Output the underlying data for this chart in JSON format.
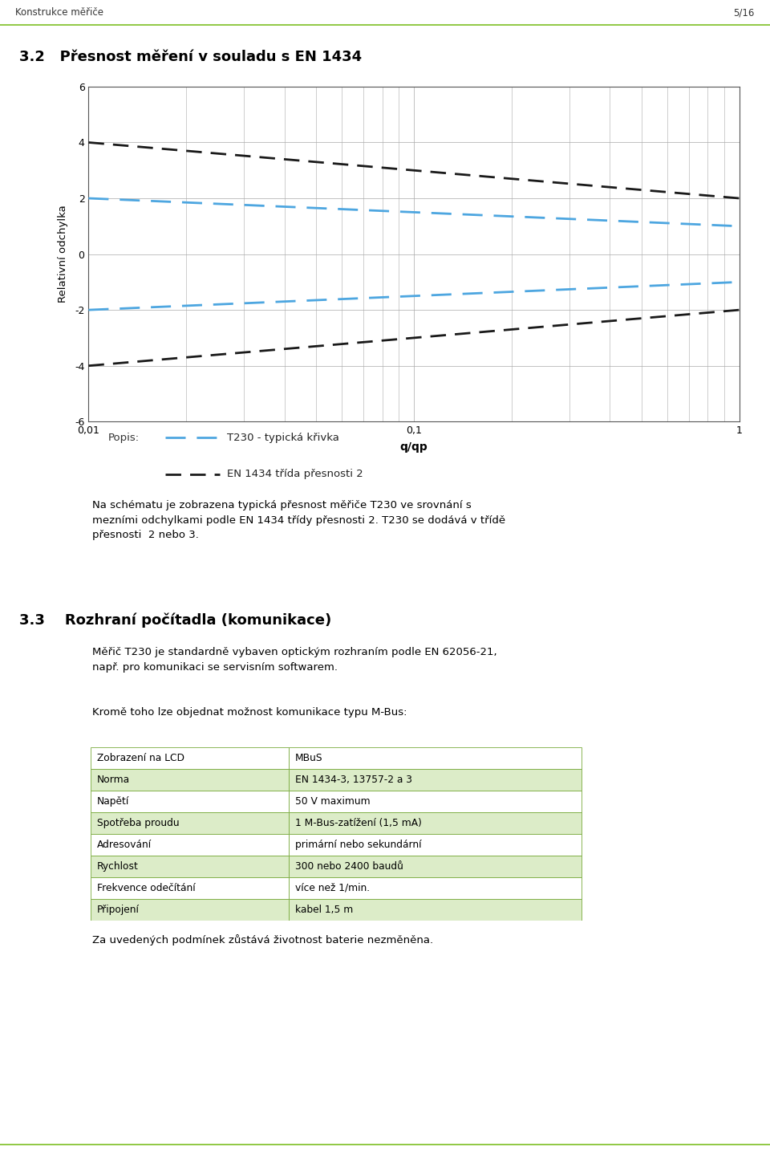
{
  "page_header_left": "Konstrukce měřiče",
  "page_header_right": "5/16",
  "header_line_color": "#8dc63f",
  "section_title": "3.2   Přesnost měření v souladu s EN 1434",
  "section_title_fontsize": 13,
  "chart": {
    "ylabel": "Relativní odchylka",
    "xlabel": "q/qp",
    "ylim": [
      -6,
      6
    ],
    "yticks": [
      -6,
      -4,
      -2,
      0,
      2,
      4,
      6
    ],
    "xtick_labels": [
      "0,01",
      "0,1",
      "1"
    ],
    "xtick_positions": [
      0.01,
      0.1,
      1.0
    ],
    "grid_color": "#aaaaaa",
    "grid_linewidth": 0.5,
    "blue_color": "#4da6e0",
    "black_color": "#1a1a1a"
  },
  "legend_label_popis": "Popis:",
  "legend_blue_label": "T230 - typická křivka",
  "legend_black_label": "EN 1434 třída přesnosti 2",
  "para1": "Na schématu je zobrazena typická přesnost měřiče T230 ve srovnání s\nmezními odchylkami podle EN 1434 třídy přesnosti 2. T230 se dodává v třídě\npřesnosti  2 nebo 3.",
  "section2_num": "3.3",
  "section2_title": "Rozhraní počítadla (komunikace)",
  "section2_title_fontsize": 13,
  "para2": "Měřič T230 je standardně vybaven optickým rozhraním podle EN 62056-21,\nnapř. pro komunikaci se servisním softwarem.",
  "para3": "Kromě toho lze objednat možnost komunikace typu M-Bus:",
  "table_headers": [
    "Zobrazení na LCD",
    "MBuS"
  ],
  "table_rows": [
    [
      "Norma",
      "EN 1434-3, 13757-2 a 3"
    ],
    [
      "Napětí",
      "50 V maximum"
    ],
    [
      "Spotřeba proudu",
      "1 M-Bus-zatížení (1,5 mA)"
    ],
    [
      "Adresování",
      "primární nebo sekundární"
    ],
    [
      "Rychlost",
      "300 nebo 2400 baudů"
    ],
    [
      "Frekvence odečítání",
      "více než 1/min."
    ],
    [
      "Připojení",
      "kabel 1,5 m"
    ]
  ],
  "table_bg_even": "#dcecc8",
  "table_bg_odd": "#ffffff",
  "table_border_color": "#7aab3e",
  "para4": "Za uvedených podmínek zůstává životnost baterie nezměněna.",
  "footer_line_color": "#8dc63f",
  "bg_color": "#ffffff",
  "text_color": "#000000",
  "body_fontsize": 9.5,
  "body_indent": 0.12
}
